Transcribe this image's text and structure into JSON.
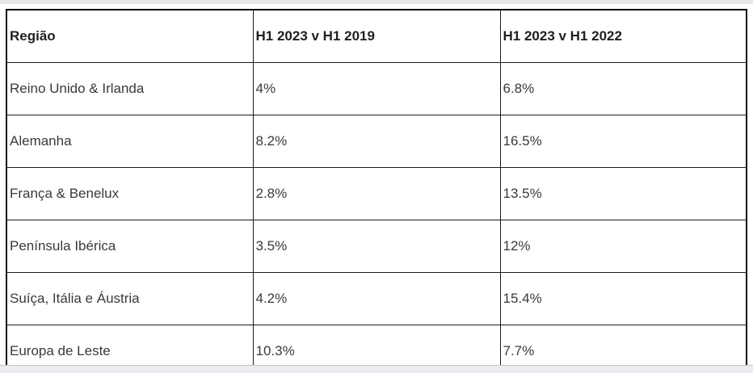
{
  "table": {
    "columns": [
      "Região",
      "H1 2023 v H1 2019",
      "H1 2023 v H1 2022"
    ],
    "rows": [
      [
        "Reino Unido & Irlanda",
        "4%",
        "6.8%"
      ],
      [
        "Alemanha",
        "8.2%",
        "16.5%"
      ],
      [
        "França & Benelux",
        "2.8%",
        "13.5%"
      ],
      [
        "Península Ibérica",
        "3.5%",
        "12%"
      ],
      [
        "Suíça, Itália e Áustria",
        "4.2%",
        "15.4%"
      ],
      [
        "Europa de Leste",
        "10.3%",
        "7.7%"
      ]
    ]
  },
  "colors": {
    "table_border": "#111111",
    "header_text": "#1f1f1f",
    "cell_text": "#3a3a3a",
    "top_strip": "#e8e8ea",
    "bottom_strip": "#eaecef"
  }
}
